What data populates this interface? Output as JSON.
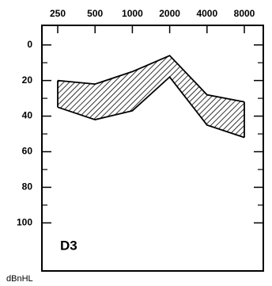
{
  "chart_data": {
    "type": "band",
    "categories": [
      "250",
      "500",
      "1000",
      "2000",
      "4000",
      "8000"
    ],
    "series": [
      {
        "values": [
          20,
          22,
          15,
          6,
          28,
          32
        ]
      },
      {
        "values": [
          35,
          42,
          37,
          18,
          45,
          52
        ]
      }
    ],
    "color": "#000000",
    "ylim": [
      -11,
      127
    ],
    "yticks": [
      0,
      20,
      40,
      60,
      80,
      100
    ],
    "y_inverted": true,
    "ylabel": "dBnHL",
    "annotation": "D3"
  }
}
